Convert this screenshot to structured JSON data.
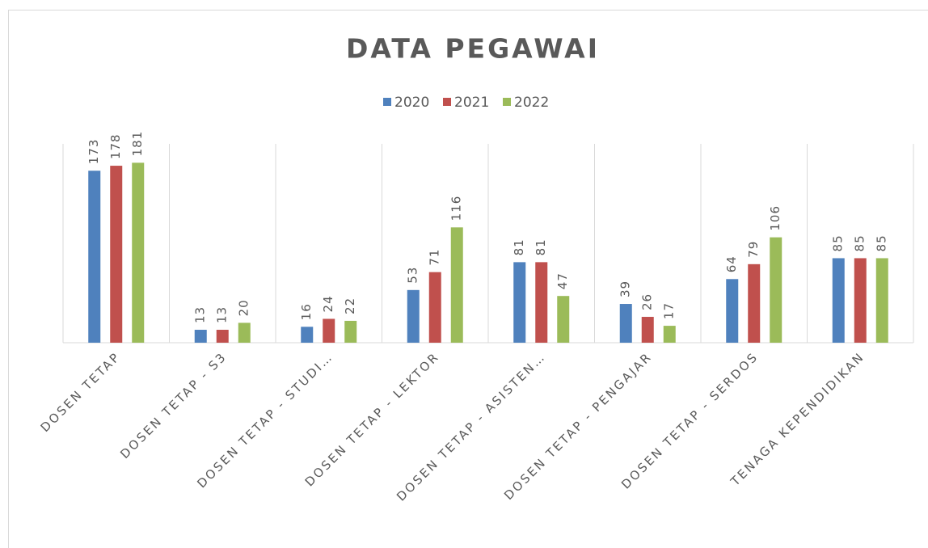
{
  "chart_data": {
    "type": "bar",
    "title": "DATA PEGAWAI",
    "categories": [
      "DOSEN TETAP",
      "DOSEN TETAP - S3",
      "DOSEN TETAP - STUDI…",
      "DOSEN TETAP - LEKTOR",
      "DOSEN TETAP - ASISTEN…",
      "DOSEN TETAP - PENGAJAR",
      "DOSEN TETAP - SERDOS",
      "TENAGA KEPENDIDIKAN"
    ],
    "series": [
      {
        "name": "2020",
        "color": "#4f81bd",
        "values": [
          173,
          13,
          16,
          53,
          81,
          39,
          64,
          85
        ]
      },
      {
        "name": "2021",
        "color": "#c0504d",
        "values": [
          178,
          13,
          24,
          71,
          81,
          26,
          79,
          85
        ]
      },
      {
        "name": "2022",
        "color": "#9bbb59",
        "values": [
          181,
          20,
          22,
          116,
          47,
          17,
          106,
          85
        ]
      }
    ],
    "ylim": [
      0,
      200
    ],
    "legend": "top"
  }
}
